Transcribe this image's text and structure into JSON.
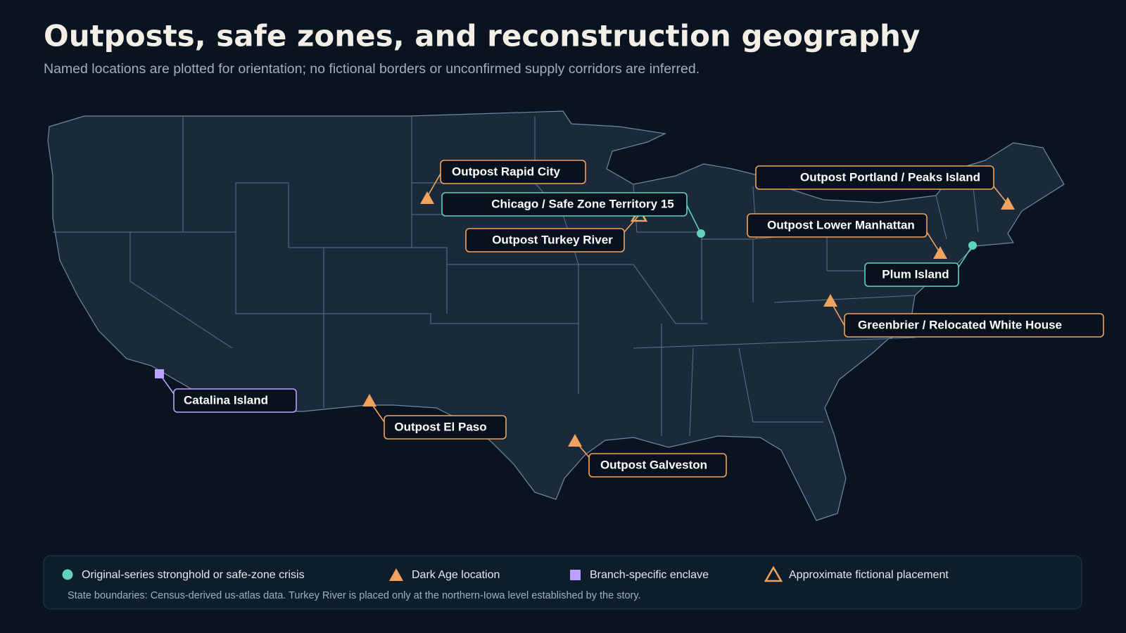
{
  "header": {
    "title": "Outposts, safe zones, and reconstruction geography",
    "subtitle": "Named locations are plotted for orientation; no fictional borders or unconfirmed supply corridors are inferred."
  },
  "locations": [
    "Outpost Rapid City",
    "Chicago / Safe Zone Territory 15",
    "Outpost Turkey River",
    "Outpost Portland / Peaks Island",
    "Outpost Lower Manhattan",
    "Plum Island",
    "Greenbrier / Relocated White House",
    "Catalina Island",
    "Outpost El Paso",
    "Outpost Galveston"
  ],
  "legend": {
    "items": [
      "Original-series stronghold or safe-zone crisis",
      "Dark Age location",
      "Branch-specific enclave",
      "Approximate fictional placement"
    ],
    "note": "State boundaries: Census-derived us-atlas data. Turkey River is placed only at the northern-Iowa level established by the story."
  }
}
